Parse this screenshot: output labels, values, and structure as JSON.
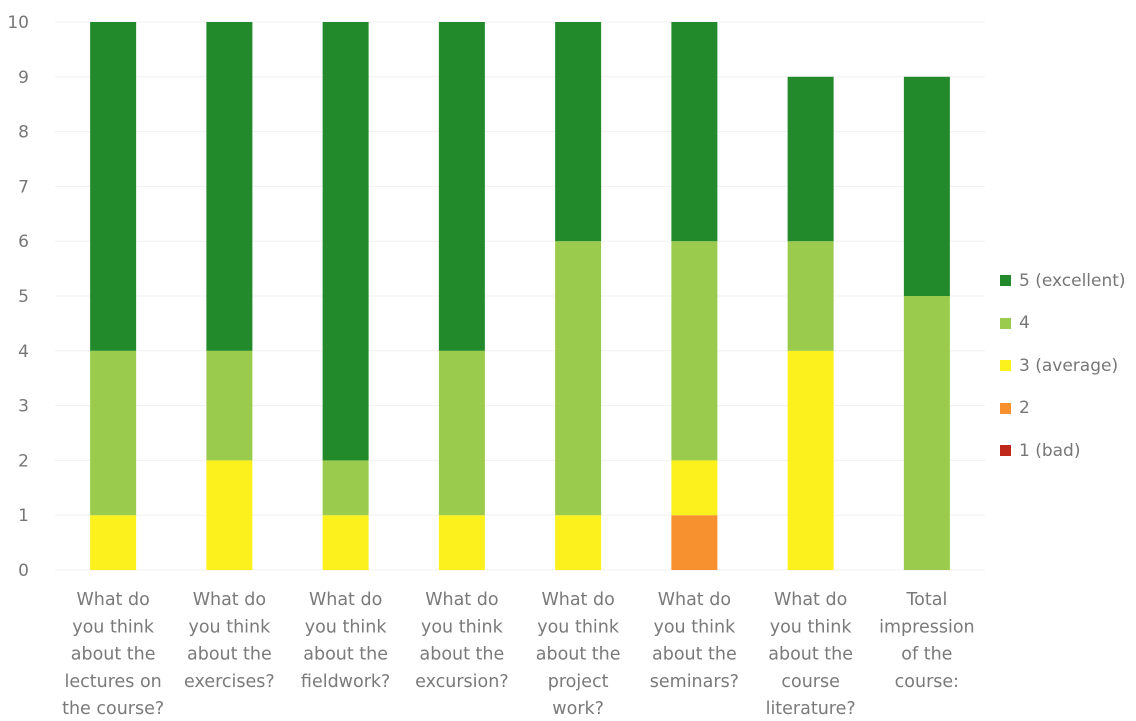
{
  "chart_data": {
    "type": "bar",
    "stacked": true,
    "categories": [
      [
        "What do",
        "you think",
        "about the",
        "lectures on",
        "the course?"
      ],
      [
        "What do",
        "you think",
        "about the",
        "exercises?"
      ],
      [
        "What do",
        "you think",
        "about the",
        "fieldwork?"
      ],
      [
        "What do",
        "you think",
        "about the",
        "excursion?"
      ],
      [
        "What do",
        "you think",
        "about the",
        "project",
        "work?"
      ],
      [
        "What do",
        "you think",
        "about the",
        "seminars?"
      ],
      [
        "What do",
        "you think",
        "about the",
        "course",
        "literature?"
      ],
      [
        "Total",
        "impression",
        "of the",
        "course:"
      ]
    ],
    "series": [
      {
        "name": "1 (bad)",
        "color": "#c0281c",
        "values": [
          0,
          0,
          0,
          0,
          0,
          0,
          0,
          0
        ]
      },
      {
        "name": "2",
        "color": "#f7912f",
        "values": [
          0,
          0,
          0,
          0,
          0,
          1,
          0,
          0
        ]
      },
      {
        "name": "3 (average)",
        "color": "#fcf11d",
        "values": [
          1,
          2,
          1,
          1,
          1,
          1,
          4,
          0
        ]
      },
      {
        "name": "4",
        "color": "#9acb4c",
        "values": [
          3,
          2,
          1,
          3,
          5,
          4,
          2,
          5
        ]
      },
      {
        "name": "5 (excellent)",
        "color": "#238a2b",
        "values": [
          6,
          6,
          8,
          6,
          4,
          4,
          3,
          4
        ]
      }
    ],
    "legend_order": [
      "5 (excellent)",
      "4",
      "3 (average)",
      "2",
      "1 (bad)"
    ],
    "y_ticks": [
      "0",
      "1",
      "2",
      "3",
      "4",
      "5",
      "6",
      "7",
      "8",
      "9",
      "10"
    ],
    "ylim": [
      0,
      10
    ],
    "grid": true,
    "legend_position": "right"
  }
}
